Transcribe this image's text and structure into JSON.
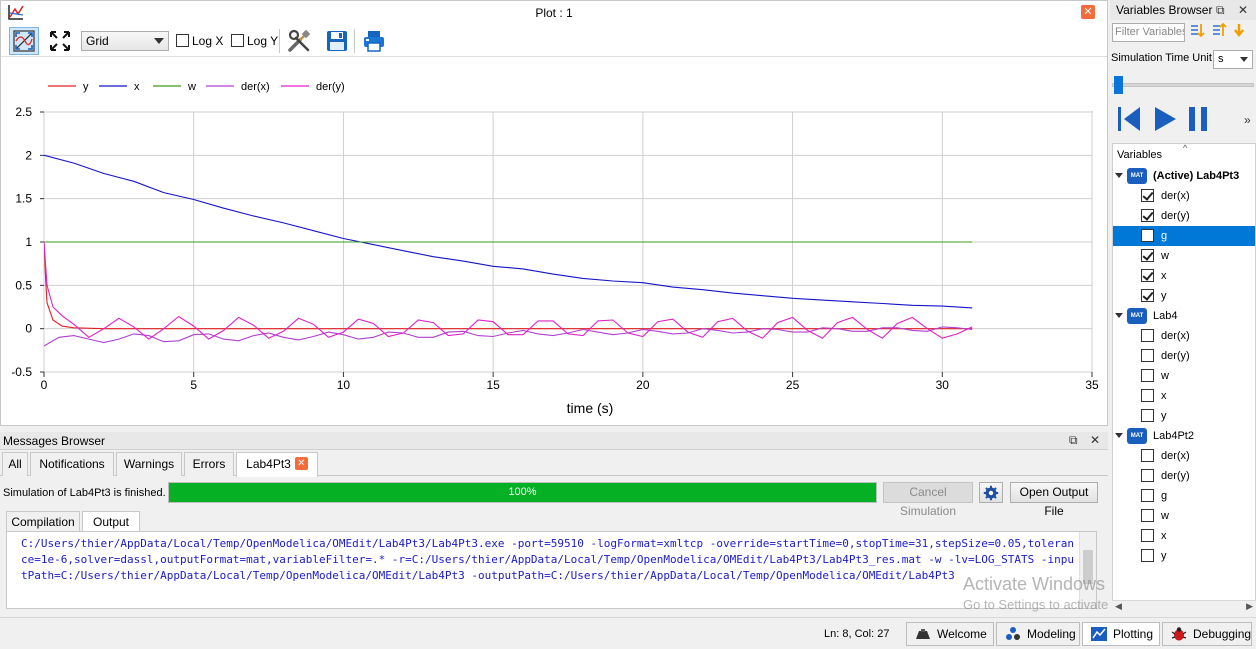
{
  "plot": {
    "window_title": "Plot : 1",
    "grid_option": "Grid",
    "log_x_label": "Log X",
    "log_y_label": "Log Y",
    "log_x_checked": false,
    "log_y_checked": false
  },
  "chart_data": {
    "type": "line",
    "xlabel": "time (s)",
    "ylabel": "",
    "xlim": [
      0,
      35
    ],
    "ylim": [
      -0.5,
      2.5
    ],
    "xticks": [
      "0",
      "5",
      "10",
      "15",
      "20",
      "25",
      "30",
      "35"
    ],
    "yticks": [
      "-0.5",
      "0",
      "0.5",
      "1",
      "1.5",
      "2",
      "2.5"
    ],
    "grid": true,
    "legend_position": "top-left",
    "series": [
      {
        "name": "y",
        "color": "#e02020",
        "x": [
          0,
          0.05,
          0.1,
          0.3,
          0.6,
          1.0,
          2,
          4,
          8,
          12,
          16,
          20,
          24,
          28,
          31
        ],
        "y": [
          1.0,
          0.6,
          0.3,
          0.1,
          0.03,
          0.01,
          0.0,
          0.0,
          0.0,
          0.0,
          0.0,
          0.0,
          0.0,
          0.0,
          0.0
        ]
      },
      {
        "name": "x",
        "color": "#1414c8",
        "x": [
          0,
          1,
          2,
          3,
          4,
          5,
          6,
          7,
          8,
          9,
          10,
          11,
          12,
          13,
          14,
          15,
          16,
          17,
          18,
          19,
          20,
          21,
          22,
          23,
          24,
          25,
          26,
          27,
          28,
          29,
          30,
          31
        ],
        "y": [
          2.0,
          1.91,
          1.79,
          1.7,
          1.57,
          1.49,
          1.39,
          1.3,
          1.22,
          1.13,
          1.04,
          0.97,
          0.9,
          0.83,
          0.78,
          0.72,
          0.69,
          0.63,
          0.58,
          0.55,
          0.53,
          0.48,
          0.45,
          0.41,
          0.38,
          0.35,
          0.33,
          0.31,
          0.29,
          0.27,
          0.26,
          0.24
        ]
      },
      {
        "name": "w",
        "color": "#3c9c1c",
        "x": [
          0,
          31
        ],
        "y": [
          1.0,
          1.0
        ]
      },
      {
        "name": "der(x)",
        "color": "#b040d0",
        "x": [
          0,
          0.5,
          1,
          1.5,
          2,
          2.5,
          3,
          3.5,
          4,
          4.5,
          5,
          5.5,
          6,
          6.5,
          7,
          7.5,
          8,
          8.5,
          9,
          9.5,
          10,
          10.5,
          11,
          11.5,
          12,
          12.5,
          13,
          13.5,
          14,
          14.5,
          15,
          15.5,
          16,
          16.5,
          17,
          17.5,
          18,
          18.5,
          19,
          19.5,
          20,
          20.5,
          21,
          21.5,
          22,
          22.5,
          23,
          23.5,
          24,
          24.5,
          25,
          25.5,
          26,
          26.5,
          27,
          27.5,
          28,
          28.5,
          29,
          29.5,
          30,
          30.5,
          31
        ],
        "y": [
          -0.2,
          -0.1,
          -0.08,
          -0.12,
          -0.16,
          -0.12,
          -0.06,
          -0.08,
          -0.15,
          -0.14,
          -0.07,
          -0.06,
          -0.12,
          -0.14,
          -0.08,
          -0.05,
          -0.1,
          -0.13,
          -0.09,
          -0.04,
          -0.07,
          -0.12,
          -0.1,
          -0.04,
          -0.05,
          -0.1,
          -0.1,
          -0.04,
          -0.03,
          -0.08,
          -0.09,
          -0.05,
          -0.02,
          -0.06,
          -0.08,
          -0.05,
          -0.01,
          -0.04,
          -0.07,
          -0.05,
          -0.01,
          -0.03,
          -0.06,
          -0.05,
          0.0,
          -0.02,
          -0.05,
          -0.04,
          0.0,
          -0.01,
          -0.04,
          -0.04,
          0.01,
          0.0,
          -0.03,
          -0.03,
          0.01,
          0.01,
          -0.02,
          -0.03,
          0.02,
          0.01,
          -0.01
        ]
      },
      {
        "name": "der(y)",
        "color": "#e020c8",
        "x": [
          0,
          0.1,
          0.3,
          0.6,
          1.0,
          1.5,
          2,
          2.5,
          3,
          3.5,
          4,
          4.5,
          5,
          5.5,
          6,
          6.5,
          7,
          7.5,
          8,
          8.5,
          9,
          9.5,
          10,
          10.5,
          11,
          11.5,
          12,
          12.5,
          13,
          13.5,
          14,
          14.5,
          15,
          15.5,
          16,
          16.5,
          17,
          17.5,
          18,
          18.5,
          19,
          19.5,
          20,
          20.5,
          21,
          21.5,
          22,
          22.5,
          23,
          23.5,
          24,
          24.5,
          25,
          25.5,
          26,
          26.5,
          27,
          27.5,
          28,
          28.5,
          29,
          29.5,
          30,
          30.5,
          31
        ],
        "y": [
          1.0,
          0.5,
          0.25,
          0.15,
          0.05,
          -0.1,
          0.0,
          0.12,
          0.02,
          -0.12,
          0.0,
          0.14,
          0.03,
          -0.12,
          -0.02,
          0.13,
          0.04,
          -0.11,
          -0.03,
          0.12,
          0.05,
          -0.1,
          -0.04,
          0.11,
          0.06,
          -0.09,
          -0.05,
          0.1,
          0.07,
          -0.08,
          -0.06,
          0.1,
          0.08,
          -0.07,
          -0.07,
          0.09,
          0.09,
          -0.06,
          -0.08,
          0.09,
          0.1,
          -0.05,
          -0.09,
          0.08,
          0.11,
          -0.04,
          -0.1,
          0.08,
          0.12,
          -0.03,
          -0.11,
          0.07,
          0.13,
          -0.02,
          -0.11,
          0.07,
          0.13,
          -0.01,
          -0.11,
          0.06,
          0.13,
          0.0,
          -0.11,
          -0.06,
          0.02
        ]
      }
    ]
  },
  "messages": {
    "title": "Messages Browser",
    "tabs": [
      "All",
      "Notifications",
      "Warnings",
      "Errors",
      "Lab4Pt3"
    ],
    "active_tab": "Lab4Pt3",
    "status": "Simulation of Lab4Pt3 is finished.",
    "progress_label": "100%",
    "progress_value": 1.0,
    "cancel_label": "Cancel Simulation",
    "open_output_label": "Open Output File",
    "sub_tabs": [
      "Compilation",
      "Output"
    ],
    "active_sub_tab": "Output",
    "output_text": "C:/Users/thier/AppData/Local/Temp/OpenModelica/OMEdit/Lab4Pt3/Lab4Pt3.exe -port=59510 -logFormat=xmltcp -override=startTime=0,stopTime=31,stepSize=0.05,tolerance=1e-6,solver=dassl,outputFormat=mat,variableFilter=.* -r=C:/Users/thier/AppData/Local/Temp/OpenModelica/OMEdit/Lab4Pt3/Lab4Pt3_res.mat -w -lv=LOG_STATS -inputPath=C:/Users/thier/AppData/Local/Temp/OpenModelica/OMEdit/Lab4Pt3 -outputPath=C:/Users/thier/AppData/Local/Temp/OpenModelica/OMEdit/Lab4Pt3"
  },
  "watermark": {
    "line1": "Activate Windows",
    "line2": "Go to Settings to activate Windows."
  },
  "statusbar": {
    "cursor": "Ln: 8, Col: 27",
    "perspectives": [
      "Welcome",
      "Modeling",
      "Plotting",
      "Debugging"
    ],
    "active_perspective": "Plotting"
  },
  "variables": {
    "title": "Variables Browser",
    "filter_placeholder": "Filter Variables",
    "time_unit_label": "Simulation Time Unit",
    "time_unit": "s",
    "tree_header": "Variables",
    "mat_icon_text": "MAT",
    "models": [
      {
        "name": "(Active) Lab4Pt3",
        "vars": [
          {
            "name": "der(x)",
            "checked": true
          },
          {
            "name": "der(y)",
            "checked": true
          },
          {
            "name": "g",
            "checked": false,
            "selected": true
          },
          {
            "name": "w",
            "checked": true
          },
          {
            "name": "x",
            "checked": true
          },
          {
            "name": "y",
            "checked": true
          }
        ]
      },
      {
        "name": "Lab4",
        "vars": [
          {
            "name": "der(x)",
            "checked": false
          },
          {
            "name": "der(y)",
            "checked": false
          },
          {
            "name": "w",
            "checked": false
          },
          {
            "name": "x",
            "checked": false
          },
          {
            "name": "y",
            "checked": false
          }
        ]
      },
      {
        "name": "Lab4Pt2",
        "vars": [
          {
            "name": "der(x)",
            "checked": false
          },
          {
            "name": "der(y)",
            "checked": false
          },
          {
            "name": "g",
            "checked": false
          },
          {
            "name": "w",
            "checked": false
          },
          {
            "name": "x",
            "checked": false
          },
          {
            "name": "y",
            "checked": false
          }
        ]
      }
    ]
  }
}
